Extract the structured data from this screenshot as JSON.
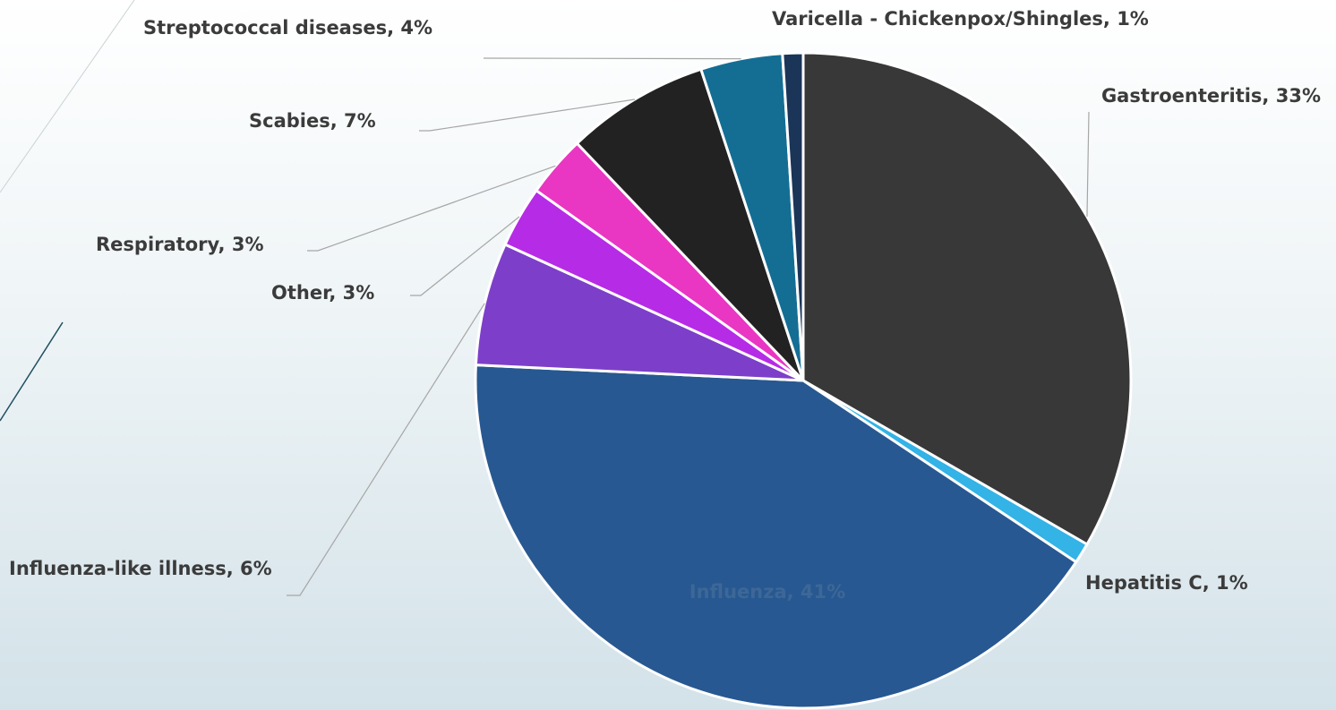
{
  "chart_data": {
    "type": "pie",
    "values": [
      33,
      1,
      41,
      6,
      3,
      3,
      7,
      4,
      1
    ],
    "value_labels": [
      "Gastroenteritis, 33%",
      "Hepatitis C, 1%",
      "Influenza, 41%",
      "Influenza-like illness, 6%",
      "Other, 3%",
      "Respiratory, 3%",
      "Scabies, 7%",
      "Streptococcal diseases, 4%",
      "Varicella - Chickenpox/Shingles, 1%"
    ],
    "colors": [
      "#383838",
      "#33b3e6",
      "#275891",
      "#7d3fc9",
      "#b62be6",
      "#e936c3",
      "#222222",
      "#146e94",
      "#1a3558"
    ]
  }
}
